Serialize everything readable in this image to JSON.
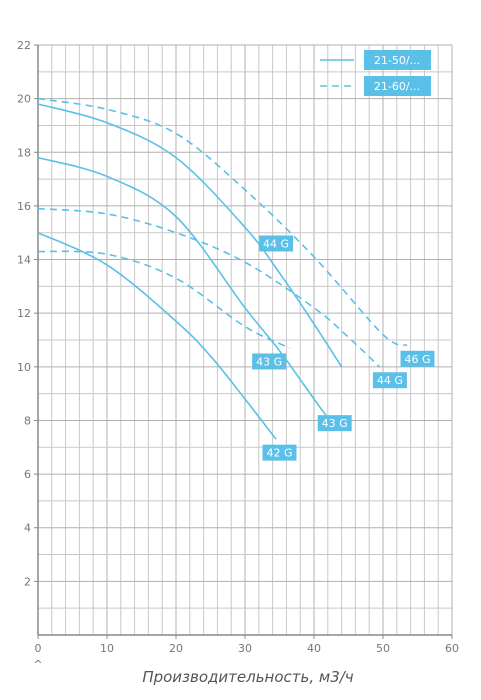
{
  "chart_data": {
    "type": "line",
    "title": "",
    "xlabel": "Производительность, м3/ч",
    "ylabel": "",
    "xlim": [
      0,
      60
    ],
    "ylim": [
      0,
      22
    ],
    "x_ticks": [
      "0",
      "10",
      "20",
      "30",
      "40",
      "50",
      "60"
    ],
    "y_ticks": [
      "2",
      "4",
      "6",
      "8",
      "10",
      "12",
      "14",
      "16",
      "18",
      "20",
      "22"
    ],
    "x_origin_mark": "^",
    "grid": true,
    "legend_position": "top-right",
    "colors": {
      "curve": "#5bc0e8",
      "grid": "#c8c8c8",
      "axis": "#888888",
      "label_bg": "#5bc0e8"
    },
    "legend": [
      {
        "name": "21-50/...",
        "style": "solid"
      },
      {
        "name": "21-60/...",
        "style": "dashed"
      }
    ],
    "series": [
      {
        "label": "44 G",
        "style": "solid",
        "points": [
          [
            0,
            19.8
          ],
          [
            10,
            19.1
          ],
          [
            20,
            17.8
          ],
          [
            30,
            15.2
          ],
          [
            35,
            13.5
          ],
          [
            40,
            11.6
          ],
          [
            44,
            10.0
          ]
        ],
        "label_at": [
          34.5,
          14.6
        ]
      },
      {
        "label": "43 G",
        "style": "solid",
        "points": [
          [
            0,
            17.8
          ],
          [
            10,
            17.1
          ],
          [
            20,
            15.6
          ],
          [
            30,
            12.2
          ],
          [
            35,
            10.6
          ],
          [
            40,
            8.8
          ],
          [
            42,
            8.1
          ]
        ],
        "label_at": [
          43,
          7.9
        ]
      },
      {
        "label": "42 G",
        "style": "solid",
        "points": [
          [
            0,
            15.0
          ],
          [
            10,
            13.8
          ],
          [
            20,
            11.7
          ],
          [
            25,
            10.4
          ],
          [
            30,
            8.8
          ],
          [
            34.5,
            7.3
          ]
        ],
        "label_at": [
          35,
          6.8
        ]
      },
      {
        "label": "46 G",
        "style": "dashed",
        "points": [
          [
            0,
            20.0
          ],
          [
            10,
            19.6
          ],
          [
            20,
            18.7
          ],
          [
            30,
            16.6
          ],
          [
            40,
            14.1
          ],
          [
            50,
            11.2
          ],
          [
            53.5,
            10.8
          ]
        ],
        "label_at": [
          55,
          10.3
        ]
      },
      {
        "label": "44 G",
        "style": "dashed",
        "points": [
          [
            0,
            15.9
          ],
          [
            10,
            15.7
          ],
          [
            20,
            15.0
          ],
          [
            30,
            13.9
          ],
          [
            40,
            12.2
          ],
          [
            45,
            11.1
          ],
          [
            49.5,
            10.0
          ]
        ],
        "label_at": [
          51,
          9.5
        ]
      },
      {
        "label": "43 G",
        "style": "dashed",
        "points": [
          [
            0,
            14.3
          ],
          [
            10,
            14.2
          ],
          [
            20,
            13.3
          ],
          [
            30,
            11.5
          ],
          [
            36.5,
            10.7
          ]
        ],
        "label_at": [
          33.5,
          10.2
        ]
      }
    ]
  }
}
